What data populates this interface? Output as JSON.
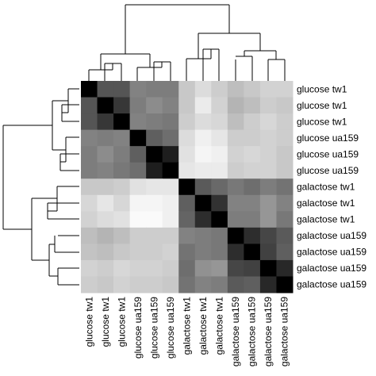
{
  "chart_data": {
    "type": "heatmap",
    "title": "",
    "rows": [
      "glucose tw1",
      "glucose tw1",
      "glucose tw1",
      "glucose ua159",
      "glucose ua159",
      "glucose ua159",
      "galactose tw1",
      "galactose tw1",
      "galactose tw1",
      "galactose ua159",
      "galactose ua159",
      "galactose ua159",
      "galactose ua159"
    ],
    "columns": [
      "glucose tw1",
      "glucose tw1",
      "glucose tw1",
      "glucose ua159",
      "glucose ua159",
      "glucose ua159",
      "galactose tw1",
      "galactose tw1",
      "galactose tw1",
      "galactose ua159",
      "galactose ua159",
      "galactose ua159",
      "galactose ua159"
    ],
    "values": [
      [
        0,
        85,
        85,
        130,
        125,
        125,
        200,
        220,
        205,
        190,
        200,
        210,
        210
      ],
      [
        85,
        0,
        55,
        125,
        140,
        130,
        200,
        235,
        210,
        180,
        190,
        205,
        200
      ],
      [
        85,
        55,
        0,
        130,
        125,
        120,
        205,
        220,
        215,
        190,
        205,
        215,
        205
      ],
      [
        130,
        125,
        130,
        0,
        95,
        110,
        220,
        240,
        230,
        205,
        205,
        210,
        205
      ],
      [
        125,
        140,
        125,
        95,
        0,
        30,
        225,
        245,
        240,
        210,
        215,
        210,
        200
      ],
      [
        125,
        130,
        120,
        110,
        30,
        0,
        230,
        235,
        235,
        205,
        210,
        210,
        200
      ],
      [
        200,
        200,
        205,
        225,
        230,
        230,
        0,
        90,
        105,
        120,
        110,
        125,
        115
      ],
      [
        215,
        230,
        215,
        245,
        245,
        240,
        95,
        0,
        50,
        130,
        130,
        150,
        130
      ],
      [
        210,
        220,
        225,
        250,
        250,
        240,
        100,
        45,
        0,
        125,
        125,
        150,
        120
      ],
      [
        190,
        180,
        190,
        205,
        205,
        205,
        130,
        125,
        120,
        0,
        45,
        70,
        90
      ],
      [
        195,
        190,
        200,
        205,
        205,
        210,
        115,
        125,
        120,
        45,
        0,
        65,
        95
      ],
      [
        210,
        205,
        215,
        210,
        210,
        205,
        110,
        145,
        150,
        70,
        65,
        0,
        40
      ],
      [
        205,
        200,
        210,
        205,
        205,
        200,
        115,
        130,
        125,
        90,
        95,
        40,
        0
      ]
    ],
    "color_scale": {
      "low": "#000000",
      "high": "#ffffff",
      "min": 0,
      "max": 255
    }
  }
}
